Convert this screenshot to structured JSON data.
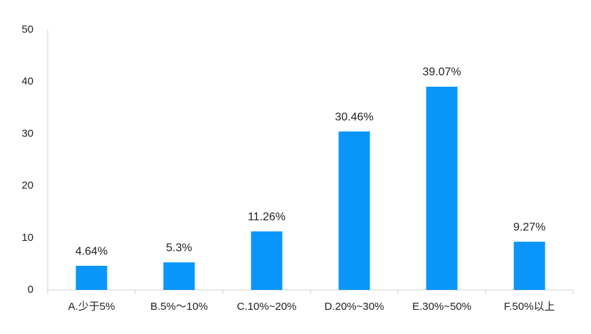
{
  "chart_data": {
    "type": "bar",
    "categories": [
      "A.少于5%",
      "B.5%～10%",
      "C.10%~20%",
      "D.20%~30%",
      "E.30%~50%",
      "F.50%以上"
    ],
    "values": [
      4.64,
      5.3,
      11.26,
      30.46,
      39.07,
      9.27
    ],
    "value_labels": [
      "4.64%",
      "5.3%",
      "11.26%",
      "30.46%",
      "39.07%",
      "9.27%"
    ],
    "color": "#0a95fb",
    "ylim": [
      0,
      50
    ],
    "yticks": [
      0,
      10,
      20,
      30,
      40,
      50
    ],
    "grid": false
  }
}
